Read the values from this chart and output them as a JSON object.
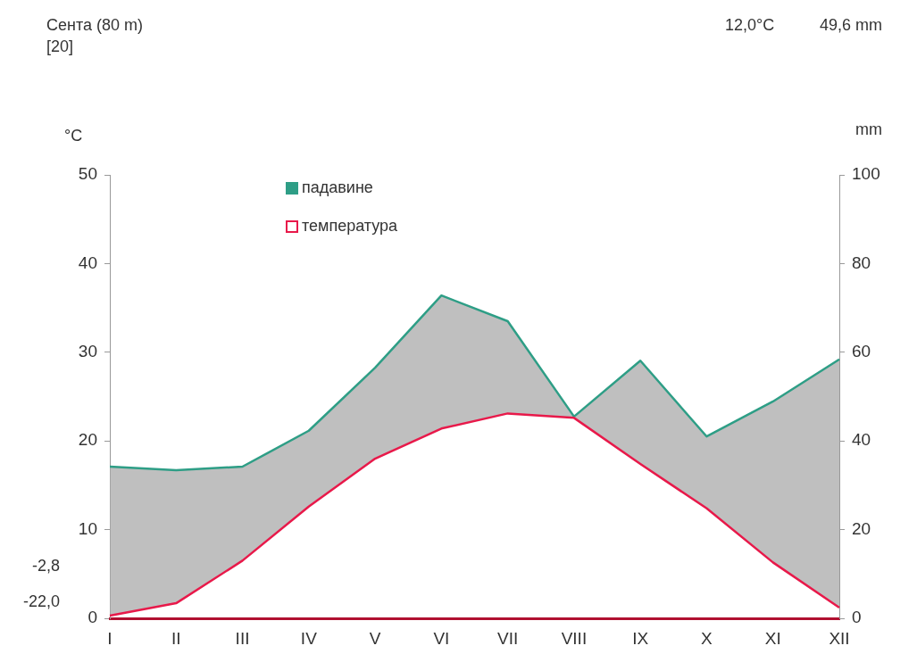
{
  "chart_data": {
    "type": "line",
    "title": "Сента (80 m)",
    "subtitle": "[20]",
    "ylabel": "°C",
    "y2label": "mm",
    "annotations": [
      "12,0°C",
      "49,6 mm",
      "-2,8",
      "-22,0"
    ],
    "categories": [
      "I",
      "II",
      "III",
      "IV",
      "V",
      "VI",
      "VII",
      "VIII",
      "IX",
      "X",
      "XI",
      "XII"
    ],
    "series": [
      {
        "name": "падавине",
        "type": "area",
        "axis": "y2",
        "color": "#2e9e86",
        "values": [
          34.2,
          33.4,
          34.2,
          42.3,
          56.5,
          72.8,
          67,
          45.5,
          58.1,
          41,
          48.9,
          58.4
        ]
      },
      {
        "name": "температура",
        "type": "line",
        "color": "#e8194a",
        "values": [
          0.3,
          1.7,
          6.5,
          12.6,
          18,
          21.4,
          23.1,
          22.6,
          17.4,
          12.4,
          6.3,
          1.2
        ]
      }
    ],
    "ylim": [
      0,
      50
    ],
    "yticks": [
      0,
      10,
      20,
      30,
      40,
      50
    ],
    "y2lim": [
      0,
      100
    ],
    "y2ticks": [
      0,
      20,
      40,
      60,
      80,
      100
    ],
    "grid": false,
    "legend": "top",
    "marker": "none",
    "line_style": "solid"
  }
}
